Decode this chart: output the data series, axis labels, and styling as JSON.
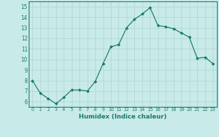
{
  "x": [
    0,
    1,
    2,
    3,
    4,
    5,
    6,
    7,
    8,
    9,
    10,
    11,
    12,
    13,
    14,
    15,
    16,
    17,
    18,
    19,
    20,
    21,
    22,
    23
  ],
  "y": [
    8.0,
    6.8,
    6.3,
    5.8,
    6.4,
    7.1,
    7.1,
    7.0,
    7.9,
    9.6,
    11.2,
    11.4,
    13.0,
    13.8,
    14.3,
    14.9,
    13.2,
    13.1,
    12.9,
    12.5,
    12.1,
    10.1,
    10.2,
    9.6
  ],
  "xlim": [
    -0.5,
    23.5
  ],
  "ylim": [
    5.5,
    15.5
  ],
  "yticks": [
    6,
    7,
    8,
    9,
    10,
    11,
    12,
    13,
    14,
    15
  ],
  "xticks": [
    0,
    1,
    2,
    3,
    4,
    5,
    6,
    7,
    8,
    9,
    10,
    11,
    12,
    13,
    14,
    15,
    16,
    17,
    18,
    19,
    20,
    21,
    22,
    23
  ],
  "xlabel": "Humidex (Indice chaleur)",
  "line_color": "#1a7a6e",
  "marker": "D",
  "marker_size": 2.0,
  "bg_color": "#c8eae8",
  "grid_color": "#b0d8d4",
  "spine_color": "#1a7a6e"
}
